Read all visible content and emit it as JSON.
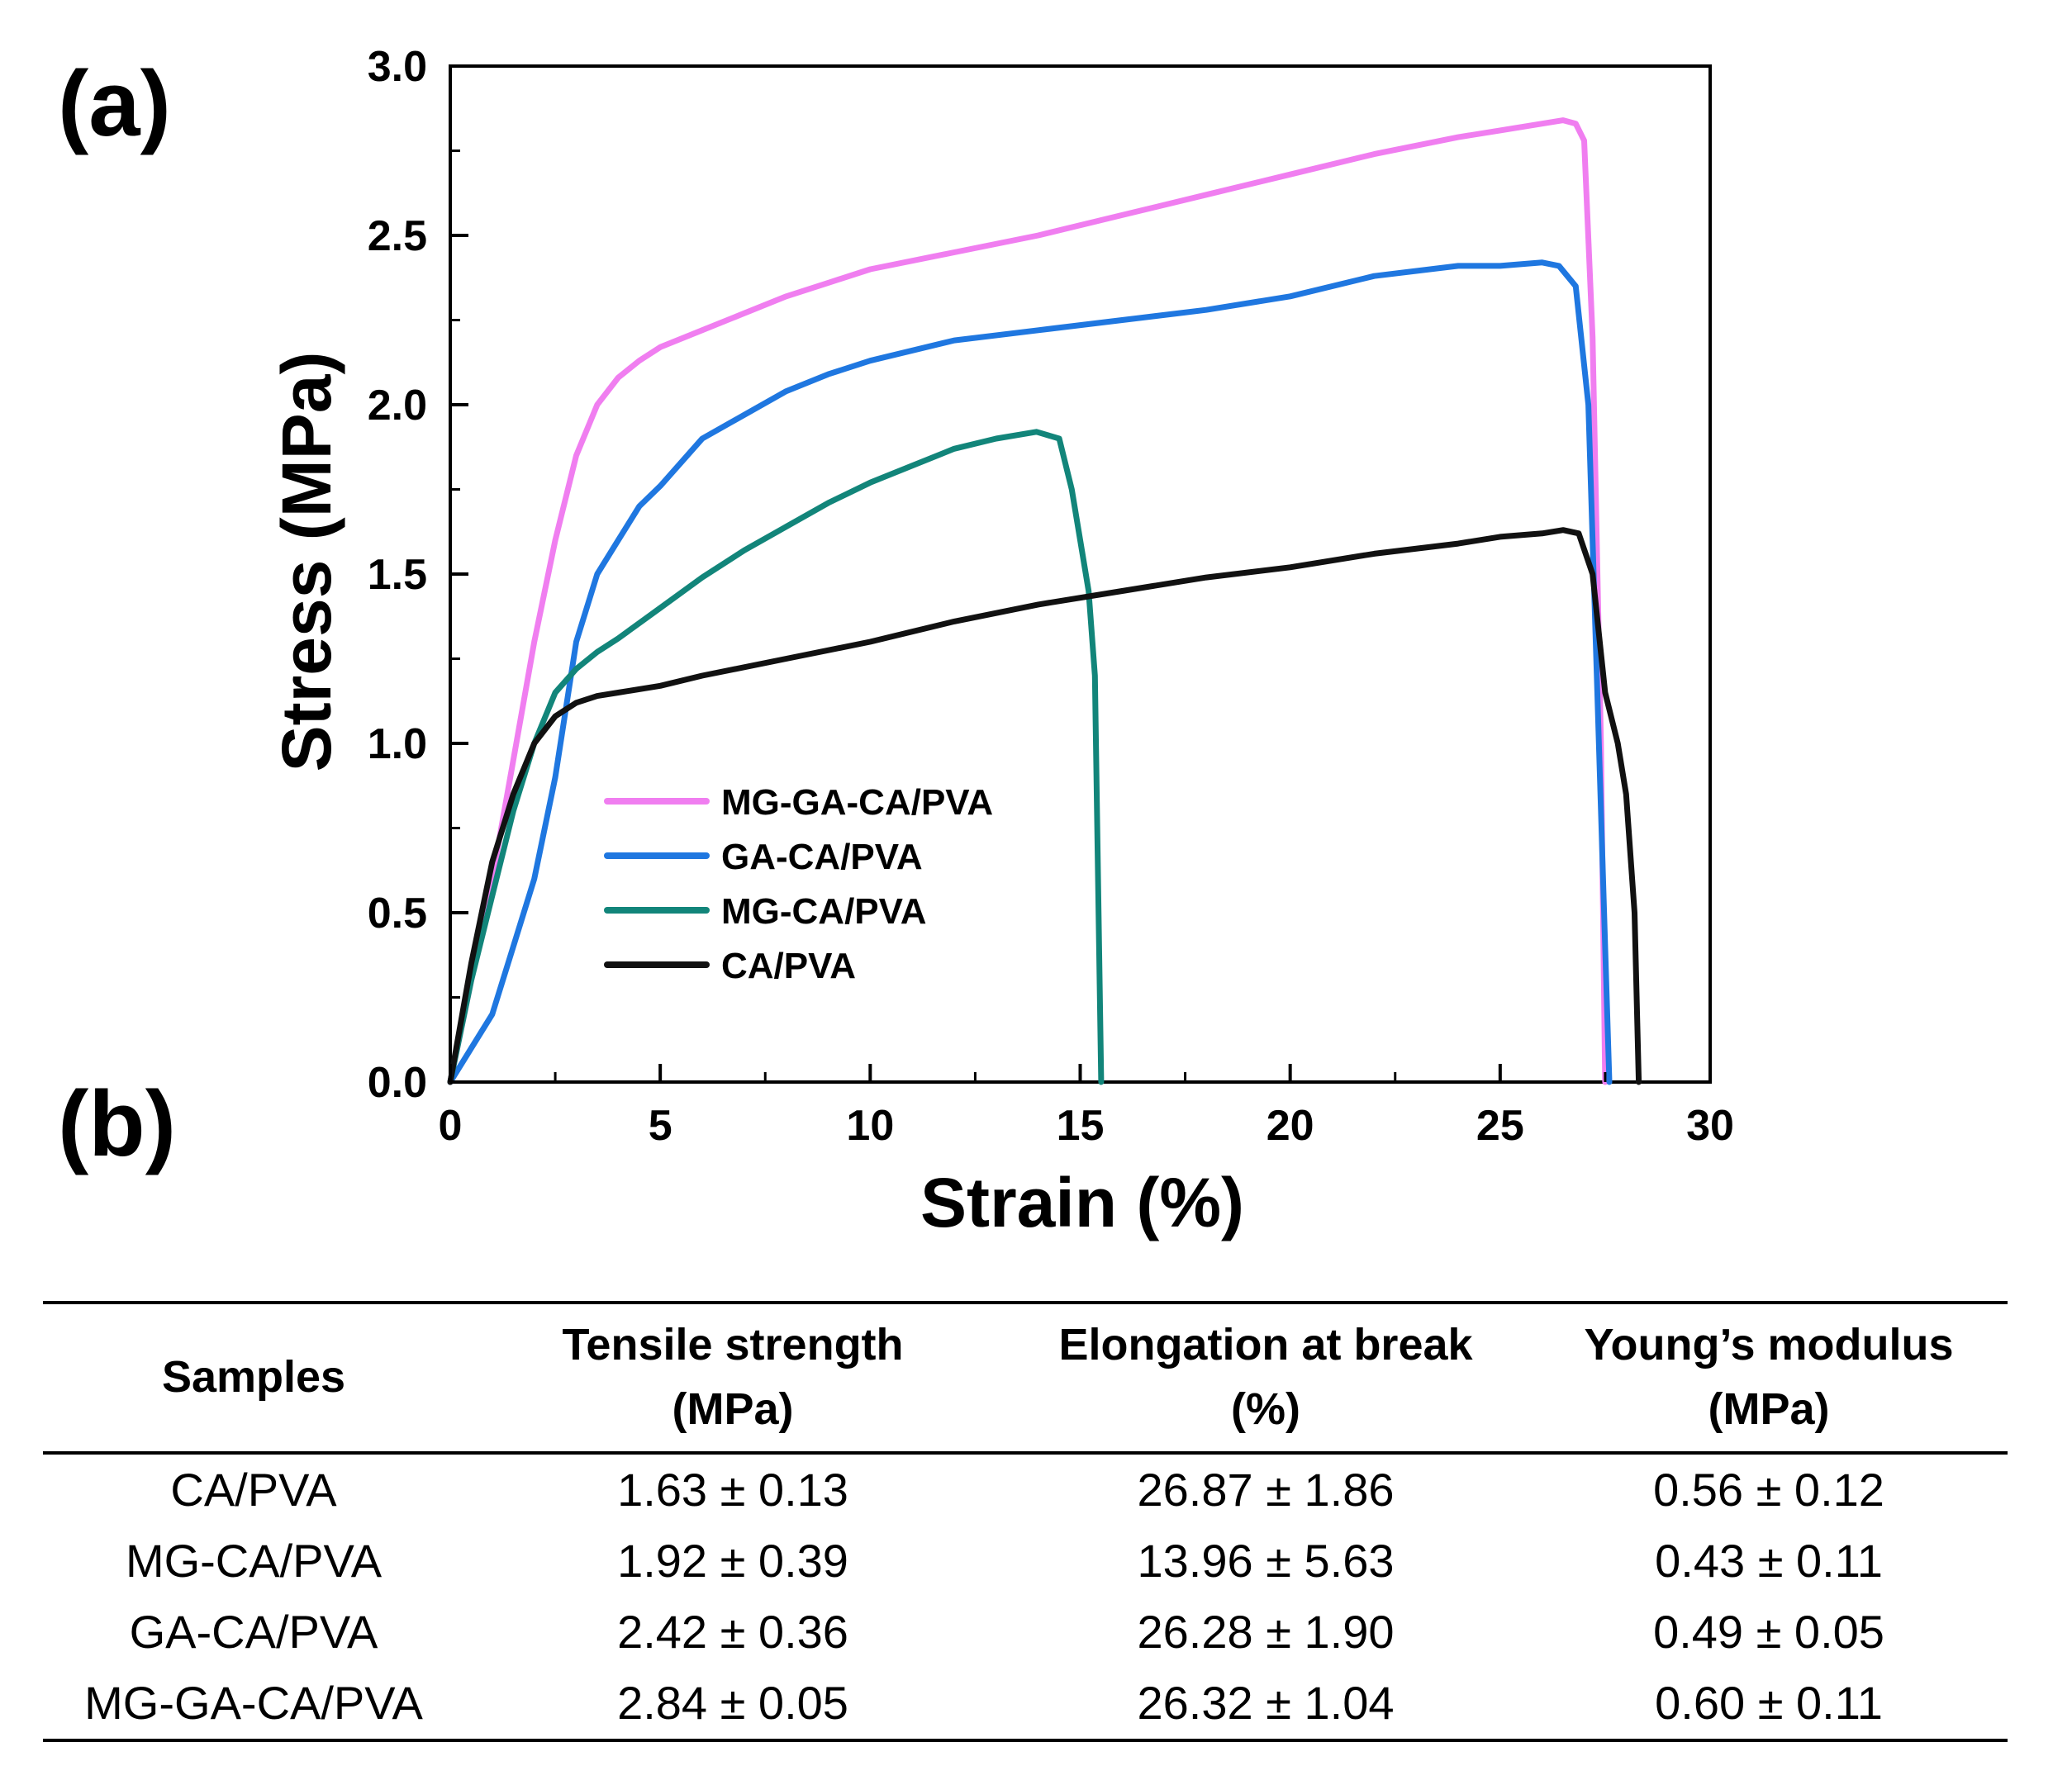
{
  "panels": {
    "a": "(a)",
    "b": "(b)"
  },
  "chart_data": {
    "type": "line",
    "xlabel": "Strain (%)",
    "ylabel": "Stress (MPa)",
    "xlim": [
      0,
      30
    ],
    "ylim": [
      0,
      3.0
    ],
    "xticks": [
      0,
      5,
      10,
      15,
      20,
      25,
      30
    ],
    "yticks": [
      0.0,
      0.5,
      1.0,
      1.5,
      2.0,
      2.5,
      3.0
    ],
    "xtick_labels": [
      "0",
      "5",
      "10",
      "15",
      "20",
      "25",
      "30"
    ],
    "ytick_labels": [
      "0.0",
      "0.5",
      "1.0",
      "1.5",
      "2.0",
      "2.5",
      "3.0"
    ],
    "grid": false,
    "legend_position": "center-left",
    "series": [
      {
        "name": "MG-GA-CA/PVA",
        "color": "#f07ef0",
        "x": [
          0,
          0.5,
          1.0,
          1.5,
          2.0,
          2.5,
          3.0,
          3.5,
          4.0,
          4.5,
          5.0,
          6.0,
          7.0,
          8.0,
          9.0,
          10.0,
          12.0,
          14.0,
          16.0,
          18.0,
          20.0,
          22.0,
          24.0,
          25.0,
          26.0,
          26.5,
          26.8,
          27.0,
          27.2,
          27.4,
          27.5
        ],
        "y": [
          0,
          0.3,
          0.6,
          0.95,
          1.3,
          1.6,
          1.85,
          2.0,
          2.08,
          2.13,
          2.17,
          2.22,
          2.27,
          2.32,
          2.36,
          2.4,
          2.45,
          2.5,
          2.56,
          2.62,
          2.68,
          2.74,
          2.79,
          2.81,
          2.83,
          2.84,
          2.83,
          2.78,
          2.2,
          1.0,
          0.0
        ]
      },
      {
        "name": "GA-CA/PVA",
        "color": "#1f77e0",
        "x": [
          0,
          0.5,
          1.0,
          1.5,
          2.0,
          2.5,
          3.0,
          3.5,
          4.0,
          4.5,
          5.0,
          6.0,
          7.0,
          8.0,
          9.0,
          10.0,
          12.0,
          14.0,
          16.0,
          18.0,
          20.0,
          22.0,
          24.0,
          25.0,
          26.0,
          26.4,
          26.8,
          27.1,
          27.3,
          27.5,
          27.6
        ],
        "y": [
          0,
          0.1,
          0.2,
          0.4,
          0.6,
          0.9,
          1.3,
          1.5,
          1.6,
          1.7,
          1.76,
          1.9,
          1.97,
          2.04,
          2.09,
          2.13,
          2.19,
          2.22,
          2.25,
          2.28,
          2.32,
          2.38,
          2.41,
          2.41,
          2.42,
          2.41,
          2.35,
          2.0,
          1.2,
          0.4,
          0.0
        ]
      },
      {
        "name": "MG-CA/PVA",
        "color": "#12857a",
        "x": [
          0,
          0.5,
          1.0,
          1.5,
          2.0,
          2.5,
          3.0,
          3.5,
          4.0,
          5.0,
          6.0,
          7.0,
          8.0,
          9.0,
          10.0,
          11.0,
          12.0,
          13.0,
          13.96,
          14.5,
          14.8,
          15.0,
          15.2,
          15.35,
          15.5
        ],
        "y": [
          0,
          0.3,
          0.55,
          0.8,
          1.0,
          1.15,
          1.22,
          1.27,
          1.31,
          1.4,
          1.49,
          1.57,
          1.64,
          1.71,
          1.77,
          1.82,
          1.87,
          1.9,
          1.92,
          1.9,
          1.75,
          1.6,
          1.45,
          1.2,
          0.0
        ]
      },
      {
        "name": "CA/PVA",
        "color": "#111111",
        "x": [
          0,
          0.5,
          1.0,
          1.5,
          2.0,
          2.5,
          3.0,
          3.5,
          4.0,
          5.0,
          6.0,
          8.0,
          10.0,
          12.0,
          14.0,
          16.0,
          18.0,
          20.0,
          22.0,
          24.0,
          25.0,
          26.0,
          26.5,
          26.87,
          27.2,
          27.5,
          27.8,
          28.0,
          28.2,
          28.3
        ],
        "y": [
          0,
          0.35,
          0.65,
          0.85,
          1.0,
          1.08,
          1.12,
          1.14,
          1.15,
          1.17,
          1.2,
          1.25,
          1.3,
          1.36,
          1.41,
          1.45,
          1.49,
          1.52,
          1.56,
          1.59,
          1.61,
          1.62,
          1.63,
          1.62,
          1.5,
          1.15,
          1.0,
          0.85,
          0.5,
          0.0
        ]
      }
    ]
  },
  "table": {
    "headers": [
      [
        "Samples"
      ],
      [
        "Tensile strength",
        "(MPa)"
      ],
      [
        "Elongation at break",
        "(%)"
      ],
      [
        "Young’s modulus",
        "(MPa)"
      ]
    ],
    "rows": [
      [
        "CA/PVA",
        "1.63 ± 0.13",
        "26.87 ± 1.86",
        "0.56 ± 0.12"
      ],
      [
        "MG-CA/PVA",
        "1.92 ± 0.39",
        "13.96 ± 5.63",
        "0.43 ± 0.11"
      ],
      [
        "GA-CA/PVA",
        "2.42 ± 0.36",
        "26.28 ± 1.90",
        "0.49 ± 0.05"
      ],
      [
        "MG-GA-CA/PVA",
        "2.84 ± 0.05",
        "26.32 ± 1.04",
        "0.60 ± 0.11"
      ]
    ]
  }
}
